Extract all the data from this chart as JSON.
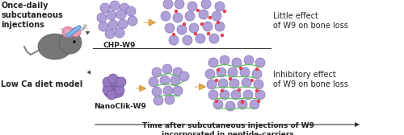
{
  "bg_color": "#ffffff",
  "title_top_left": "Once-daily\nsubcutaneous\ninjections",
  "title_bottom_left": "Low Ca diet model",
  "label_chp": "CHP-W9",
  "label_nanoclik": "NanoClik-W9",
  "label_right_top": "Little effect\nof W9 on bone loss",
  "label_right_bottom": "Inhibitory effect\nof W9 on bone loss",
  "xlabel": "Time after subcutaneous injections of W9\nincorporated in peptide-carriers",
  "chp_sphere_color": "#b0a0d8",
  "chp_sphere_edge": "#8870b8",
  "nanoclik_agg_color": "#9878c0",
  "nanoclik_agg_edge": "#6858a0",
  "w9_dot_color": "#e04050",
  "green_line_color": "#60c060",
  "arrow_fill": "#e8a840",
  "arrow_edge": "#c08828",
  "text_color": "#222222",
  "font_size_label": 6.5,
  "font_size_title": 7.0,
  "font_size_axis": 6.5
}
